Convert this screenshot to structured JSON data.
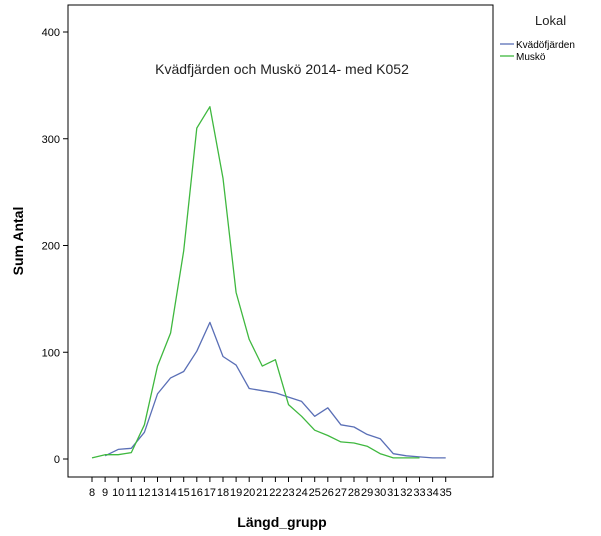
{
  "chart_data": {
    "type": "line",
    "title": "Kvädfjärden och Muskö 2014- med K052",
    "xlabel": "Längd_grupp",
    "ylabel": "Sum Antal",
    "ylim": [
      0,
      400
    ],
    "yticks": [
      0,
      100,
      200,
      300,
      400
    ],
    "x": [
      "8",
      "9",
      "10",
      "11",
      "12",
      "13",
      "14",
      "15",
      "16",
      "17",
      "18",
      "19",
      "20",
      "21",
      "22",
      "23",
      "24",
      "25",
      "26",
      "27",
      "28",
      "29",
      "30",
      "31",
      "32",
      "33",
      "34",
      "35"
    ],
    "legend_title": "Lokal",
    "legend_position": "top-right",
    "grid": false,
    "series": [
      {
        "name": "Kvädöfjärden",
        "color": "#5a6fb6",
        "values": [
          null,
          3,
          9,
          10,
          25,
          61,
          76,
          82,
          101,
          128,
          96,
          88,
          66,
          64,
          62,
          58,
          54,
          40,
          48,
          32,
          30,
          23,
          19,
          5,
          3,
          2,
          1,
          1
        ]
      },
      {
        "name": "Muskö",
        "color": "#3fb83f",
        "values": [
          1,
          4,
          4,
          6,
          32,
          87,
          118,
          195,
          310,
          330,
          263,
          156,
          112,
          87,
          93,
          51,
          40,
          27,
          22,
          16,
          15,
          12,
          5,
          1,
          1,
          1,
          null,
          null
        ]
      }
    ]
  }
}
